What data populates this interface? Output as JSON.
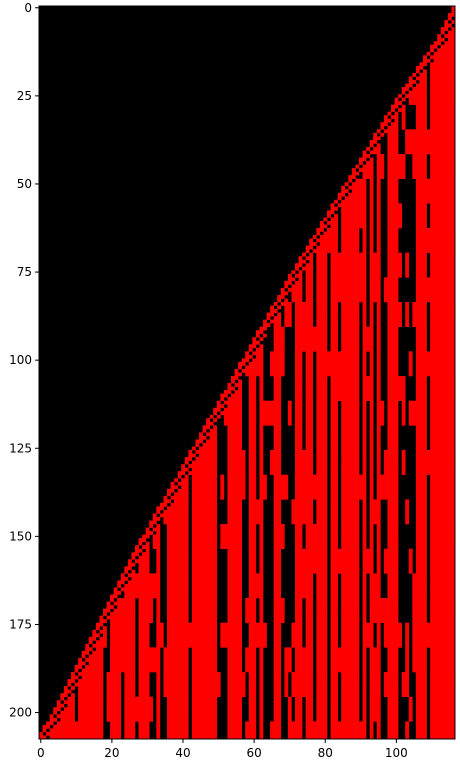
{
  "chart_data": {
    "type": "heatmap",
    "title": "",
    "xlabel": "",
    "ylabel": "",
    "xlim": [
      -0.5,
      116.5
    ],
    "ylim": [
      207.5,
      -0.5
    ],
    "x_ticks": [
      0,
      20,
      40,
      60,
      80,
      100
    ],
    "y_ticks": [
      0,
      25,
      50,
      75,
      100,
      125,
      150,
      175,
      200
    ],
    "grid": false,
    "legend": "none",
    "cell_states": [
      "off",
      "on"
    ],
    "grid_size": {
      "rows": 208,
      "cols": 117
    },
    "boundary": {
      "description": "column where the lit (red) region begins in each row, approximated from the image",
      "points": [
        {
          "row": 0,
          "col": 116
        },
        {
          "row": 10,
          "col": 111
        },
        {
          "row": 25,
          "col": 101
        },
        {
          "row": 50,
          "col": 86
        },
        {
          "row": 75,
          "col": 71
        },
        {
          "row": 100,
          "col": 57
        },
        {
          "row": 125,
          "col": 43
        },
        {
          "row": 150,
          "col": 29
        },
        {
          "row": 175,
          "col": 16
        },
        {
          "row": 200,
          "col": 4
        },
        {
          "row": 204,
          "col": 1
        },
        {
          "row": 207,
          "col": 0
        }
      ]
    },
    "colors": {
      "off": "#000000",
      "on": "#ff0000"
    }
  }
}
